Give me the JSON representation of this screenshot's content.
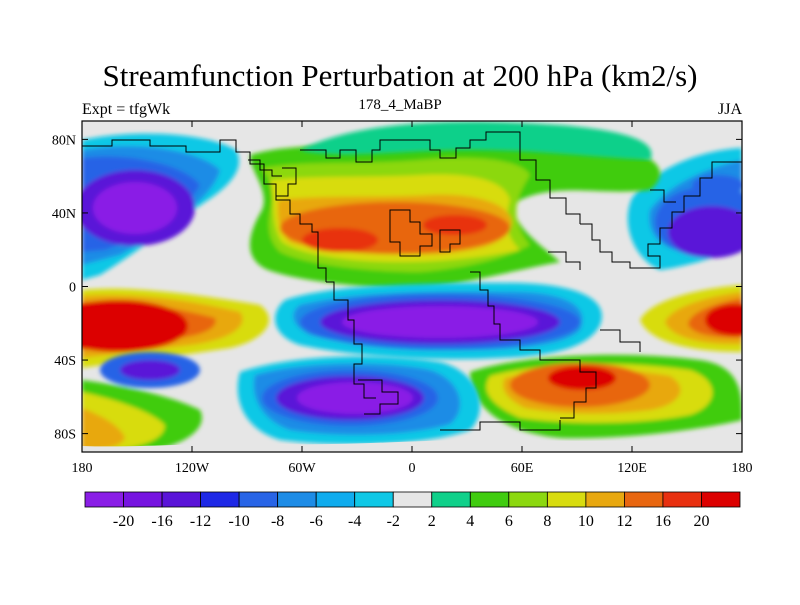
{
  "chart_data": {
    "type": "contour-map",
    "title": "Streamfunction Perturbation at 200 hPa (km2/s)",
    "left_string": "Expt = tfgWk",
    "center_string": "178_4_MaBP",
    "right_string": "JJA",
    "x_axis": {
      "range": [
        -180,
        180
      ],
      "ticks": [
        {
          "value": -180,
          "label": "180"
        },
        {
          "value": -120,
          "label": "120W"
        },
        {
          "value": -60,
          "label": "60W"
        },
        {
          "value": 0,
          "label": "0"
        },
        {
          "value": 60,
          "label": "60E"
        },
        {
          "value": 120,
          "label": "120E"
        },
        {
          "value": 180,
          "label": "180"
        }
      ]
    },
    "y_axis": {
      "range": [
        -90,
        90
      ],
      "ticks": [
        {
          "value": 80,
          "label": "80N"
        },
        {
          "value": 40,
          "label": "40N"
        },
        {
          "value": 0,
          "label": "0"
        },
        {
          "value": -40,
          "label": "40S"
        },
        {
          "value": -80,
          "label": "80S"
        }
      ]
    },
    "colorbar": {
      "levels": [
        "-20",
        "-16",
        "-12",
        "-10",
        "-8",
        "-6",
        "-4",
        "-2",
        "2",
        "4",
        "6",
        "8",
        "10",
        "12",
        "16",
        "20"
      ],
      "colors": [
        "#8a1ee6",
        "#7614e0",
        "#5a14d8",
        "#1e28e6",
        "#2864e6",
        "#1e8ce6",
        "#10acee",
        "#10c8e6",
        "#e6e6e6",
        "#10d08a",
        "#40cc10",
        "#8cd810",
        "#d8dc10",
        "#e8a810",
        "#e86610",
        "#e83010",
        "#dc0000"
      ]
    },
    "features": [
      {
        "name": "north-pacific-low",
        "lon": -140,
        "lat": 38,
        "value": -20
      },
      {
        "name": "asia-atlantic-high",
        "lon": -30,
        "lat": 30,
        "value": 16
      },
      {
        "name": "west-pacific-low",
        "lon": 168,
        "lat": 32,
        "value": -16
      },
      {
        "name": "tropical-low",
        "lon": 20,
        "lat": -28,
        "value": -20
      },
      {
        "name": "south-pacific-high",
        "lon": -165,
        "lat": -25,
        "value": 20
      },
      {
        "name": "south-atlantic-low",
        "lon": -58,
        "lat": -60,
        "value": -20
      },
      {
        "name": "southern-ocean-high",
        "lon": 100,
        "lat": -55,
        "value": 16
      }
    ]
  }
}
